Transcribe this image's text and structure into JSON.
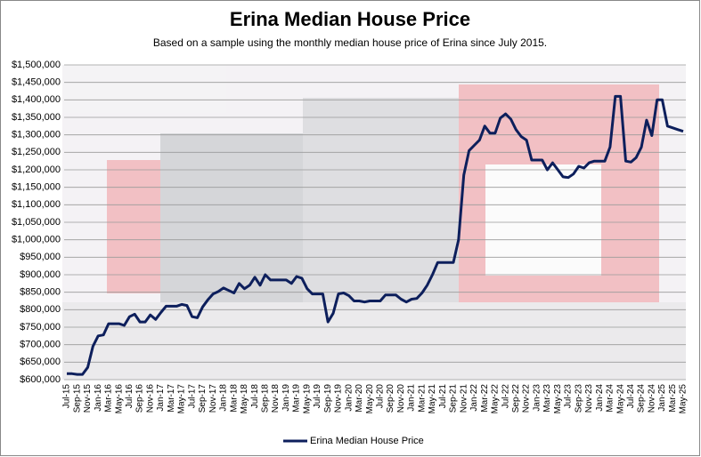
{
  "chart_data": {
    "type": "line",
    "title": "Erina Median House Price",
    "subtitle": "Based on a sample using the monthly median house price of Erina since July 2015.",
    "categories": [
      "Jul-15",
      null,
      "Sep-15",
      null,
      "Nov-15",
      null,
      "Jan-16",
      null,
      "Mar-16",
      null,
      "May-16",
      null,
      "Jul-16",
      null,
      "Sep-16",
      null,
      "Nov-16",
      null,
      "Jan-17",
      null,
      "Mar-17",
      null,
      "May-17",
      null,
      "Jul-17",
      null,
      "Sep-17",
      null,
      "Nov-17",
      null,
      "Jan-18",
      null,
      "Mar-18",
      null,
      "May-18",
      null,
      "Jul-18",
      null,
      "Sep-18",
      null,
      "Nov-18",
      null,
      "Jan-19",
      null,
      "Mar-19",
      null,
      "May-19",
      null,
      "Jul-19",
      null,
      "Sep-19",
      null,
      "Nov-19",
      null,
      "Jan-20",
      null,
      "Mar-20",
      null,
      "May-20",
      null,
      "Jul-20",
      null,
      "Sep-20",
      null,
      "Nov-20",
      null,
      "Jan-21",
      null,
      "Mar-21",
      null,
      "May-21",
      null,
      "Jul-21",
      null,
      "Sep-21",
      null,
      "Nov-21",
      null,
      "Jan-22",
      null,
      "Mar-22",
      null,
      "May-22",
      null,
      "Jul-22",
      null,
      "Sep-22",
      null,
      "Nov-22",
      null,
      "Jan-23",
      null,
      "Mar-23",
      null,
      "May-23",
      null,
      "Jul-23",
      null,
      "Sep-23",
      null,
      "Nov-23",
      null,
      "Jan-24",
      null,
      "Mar-24",
      null,
      "May-24",
      null,
      "Jul-24",
      null,
      "Sep-24",
      null,
      "Nov-24",
      null,
      "Jan-25",
      null,
      "Mar-25",
      null,
      "May-25"
    ],
    "series": [
      {
        "name": "Erina Median House Price",
        "color": "#0d1f5c",
        "values": [
          617000,
          617000,
          615000,
          615000,
          635000,
          695000,
          725000,
          728000,
          760000,
          760000,
          760000,
          755000,
          780000,
          787000,
          765000,
          765000,
          785000,
          772000,
          792000,
          810000,
          810000,
          810000,
          815000,
          812000,
          780000,
          777000,
          808000,
          828000,
          845000,
          852000,
          862000,
          855000,
          848000,
          875000,
          860000,
          870000,
          893000,
          870000,
          900000,
          885000,
          885000,
          885000,
          885000,
          875000,
          895000,
          890000,
          860000,
          845000,
          845000,
          845000,
          765000,
          790000,
          845000,
          848000,
          840000,
          825000,
          825000,
          822000,
          825000,
          825000,
          825000,
          842000,
          842000,
          842000,
          830000,
          822000,
          830000,
          832000,
          848000,
          870000,
          900000,
          935000,
          935000,
          935000,
          935000,
          1000000,
          1185000,
          1255000,
          1270000,
          1285000,
          1325000,
          1305000,
          1305000,
          1348000,
          1360000,
          1345000,
          1315000,
          1295000,
          1285000,
          1228000,
          1228000,
          1228000,
          1200000,
          1220000,
          1200000,
          1180000,
          1178000,
          1188000,
          1210000,
          1205000,
          1220000,
          1225000,
          1225000,
          1225000,
          1265000,
          1410000,
          1410000,
          1225000,
          1222000,
          1235000,
          1265000,
          1342000,
          1298000,
          1400000,
          1400000,
          1325000,
          1320000,
          1315000,
          1310000
        ]
      }
    ],
    "ylim": [
      600000,
      1500000
    ],
    "yticks": [
      {
        "value": 600000,
        "label": "$600,000"
      },
      {
        "value": 650000,
        "label": "$650,000"
      },
      {
        "value": 700000,
        "label": "$700,000"
      },
      {
        "value": 750000,
        "label": "$750,000"
      },
      {
        "value": 800000,
        "label": "$800,000"
      },
      {
        "value": 850000,
        "label": "$850,000"
      },
      {
        "value": 900000,
        "label": "$900,000"
      },
      {
        "value": 950000,
        "label": "$950,000"
      },
      {
        "value": 1000000,
        "label": "$1,000,000"
      },
      {
        "value": 1050000,
        "label": "$1,050,000"
      },
      {
        "value": 1100000,
        "label": "$1,100,000"
      },
      {
        "value": 1150000,
        "label": "$1,150,000"
      },
      {
        "value": 1200000,
        "label": "$1,200,000"
      },
      {
        "value": 1250000,
        "label": "$1,250,000"
      },
      {
        "value": 1300000,
        "label": "$1,300,000"
      },
      {
        "value": 1350000,
        "label": "$1,350,000"
      },
      {
        "value": 1400000,
        "label": "$1,400,000"
      },
      {
        "value": 1450000,
        "label": "$1,450,000"
      },
      {
        "value": 1500000,
        "label": "$1,500,000"
      }
    ],
    "grid": true,
    "legend": "bottom"
  }
}
